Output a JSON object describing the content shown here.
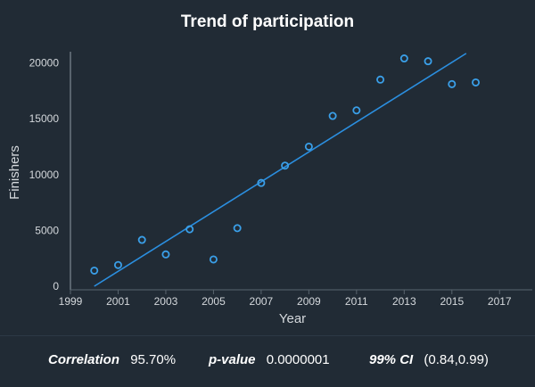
{
  "title": "Trend of participation",
  "stats": {
    "correlation": {
      "label": "Correlation",
      "value": "95.70%"
    },
    "pvalue": {
      "label": "p-value",
      "value": "0.0000001"
    },
    "ci": {
      "label": "99% CI",
      "value": "(0.84,0.99)"
    }
  },
  "colors": {
    "background": "#212b35",
    "series": "#3a9fe8",
    "axis_text": "#d4d8dc",
    "axis_line": "#59646e",
    "trend": "#2b8fe0"
  },
  "chart_data": {
    "type": "scatter",
    "title": "Trend of participation",
    "xlabel": "Year",
    "ylabel": "Finishers",
    "xlim": [
      1999,
      2018
    ],
    "ylim": [
      0,
      21000
    ],
    "xticks": [
      1999,
      2001,
      2003,
      2005,
      2007,
      2009,
      2011,
      2013,
      2015,
      2017
    ],
    "yticks": [
      0,
      5000,
      10000,
      15000,
      20000
    ],
    "grid": false,
    "points": [
      {
        "x": 2000,
        "y": 1400
      },
      {
        "x": 2001,
        "y": 1900
      },
      {
        "x": 2002,
        "y": 4150
      },
      {
        "x": 2003,
        "y": 2850
      },
      {
        "x": 2004,
        "y": 5100
      },
      {
        "x": 2005,
        "y": 2400
      },
      {
        "x": 2006,
        "y": 5200
      },
      {
        "x": 2007,
        "y": 9250
      },
      {
        "x": 2008,
        "y": 10800
      },
      {
        "x": 2009,
        "y": 12500
      },
      {
        "x": 2010,
        "y": 15250
      },
      {
        "x": 2011,
        "y": 15750
      },
      {
        "x": 2012,
        "y": 18500
      },
      {
        "x": 2013,
        "y": 20400
      },
      {
        "x": 2014,
        "y": 20150
      },
      {
        "x": 2015,
        "y": 18100
      },
      {
        "x": 2016,
        "y": 18250
      }
    ],
    "trendline": {
      "x": [
        2000,
        2015.6
      ],
      "y": [
        0,
        20850
      ]
    }
  }
}
